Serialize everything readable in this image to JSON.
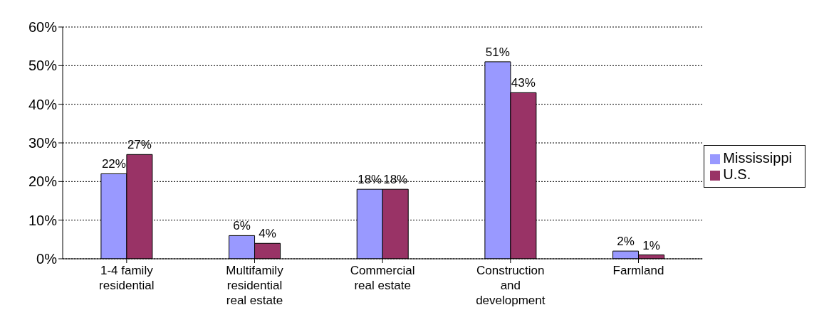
{
  "chart_data": {
    "type": "bar",
    "categories": [
      "1-4 family residential",
      "Multifamily residential real estate",
      "Commercial real estate",
      "Construction and development",
      "Farmland"
    ],
    "series": [
      {
        "name": "Mississippi",
        "color": "#9999ff",
        "values": [
          22,
          6,
          18,
          51,
          2
        ],
        "value_labels": [
          "22%",
          "6%",
          "18%",
          "51%",
          "2%"
        ]
      },
      {
        "name": "U.S.",
        "color": "#993366",
        "values": [
          27,
          4,
          18,
          43,
          1
        ],
        "value_labels": [
          "27%",
          "4%",
          "18%",
          "43%",
          "1%"
        ]
      }
    ],
    "ylim": [
      0,
      60
    ],
    "yticks": [
      {
        "value": 0,
        "label": "0%"
      },
      {
        "value": 10,
        "label": "10%"
      },
      {
        "value": 20,
        "label": "20%"
      },
      {
        "value": 30,
        "label": "30%"
      },
      {
        "value": 40,
        "label": "40%"
      },
      {
        "value": 50,
        "label": "50%"
      },
      {
        "value": 60,
        "label": "60%"
      }
    ],
    "grid": "y",
    "legend": "right"
  }
}
